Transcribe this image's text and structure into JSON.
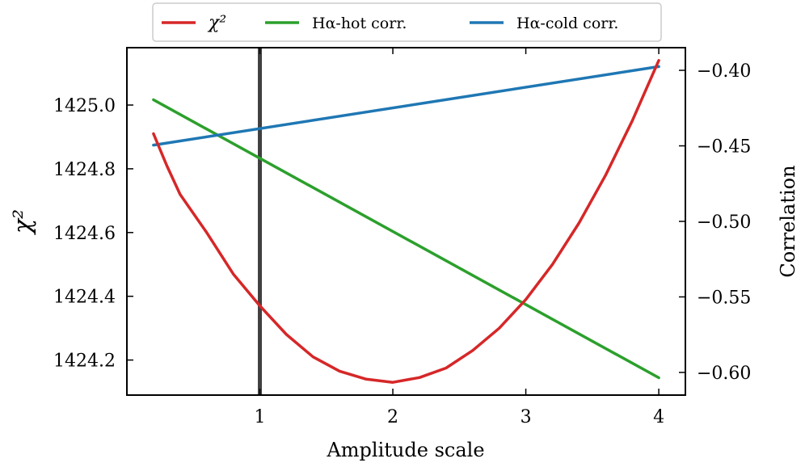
{
  "chart_data": {
    "type": "line",
    "xlabel": "Amplitude scale",
    "ylabel_left": "χ²",
    "ylabel_right": "Correlation",
    "xlim": [
      0.0,
      4.2
    ],
    "ylim_left": [
      1424.09,
      1425.18
    ],
    "ylim_right": [
      -0.615,
      -0.385
    ],
    "x_ticks": [
      1,
      2,
      3,
      4
    ],
    "x_tick_labels": [
      "1",
      "2",
      "3",
      "4"
    ],
    "y_left_ticks": [
      1424.2,
      1424.4,
      1424.6,
      1424.8,
      1425.0
    ],
    "y_left_tick_labels": [
      "1424.2",
      "1424.4",
      "1424.6",
      "1424.8",
      "1425.0"
    ],
    "y_right_ticks": [
      -0.6,
      -0.55,
      -0.5,
      -0.45,
      -0.4
    ],
    "y_right_tick_labels": [
      "−0.60",
      "−0.55",
      "−0.50",
      "−0.45",
      "−0.40"
    ],
    "vertical_line": {
      "x": 1.0,
      "color": "#404040"
    },
    "grid": false,
    "legend_position": "top-center",
    "series": [
      {
        "name": "χ²",
        "axis": "left",
        "color": "#d62728",
        "x": [
          0.2,
          0.3,
          0.4,
          0.6,
          0.8,
          1.0,
          1.2,
          1.4,
          1.6,
          1.8,
          2.0,
          2.2,
          2.4,
          2.6,
          2.8,
          3.0,
          3.2,
          3.4,
          3.6,
          3.8,
          4.0
        ],
        "values": [
          1424.91,
          1424.81,
          1424.72,
          1424.6,
          1424.47,
          1424.37,
          1424.28,
          1424.21,
          1424.165,
          1424.14,
          1424.13,
          1424.145,
          1424.175,
          1424.23,
          1424.3,
          1424.39,
          1424.5,
          1424.63,
          1424.78,
          1424.95,
          1425.14
        ]
      },
      {
        "name": "Hα-hot corr.",
        "axis": "right",
        "color": "#2ca02c",
        "x": [
          0.2,
          4.0
        ],
        "values": [
          -0.4195,
          -0.6035
        ]
      },
      {
        "name": "Hα-cold corr.",
        "axis": "right",
        "color": "#1f77b4",
        "x": [
          0.2,
          4.0
        ],
        "values": [
          -0.4495,
          -0.3975
        ]
      }
    ]
  }
}
